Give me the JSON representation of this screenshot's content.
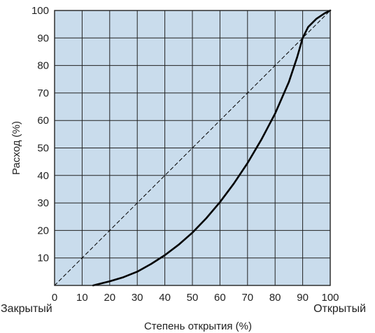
{
  "chart_data": {
    "type": "line",
    "title": "",
    "xlabel": "Степень открытия (%)",
    "ylabel": "Расход (%)",
    "xlim": [
      0,
      100
    ],
    "ylim": [
      0,
      100
    ],
    "x_ticks": [
      "0",
      "10",
      "20",
      "30",
      "40",
      "50",
      "60",
      "70",
      "80",
      "90",
      "100"
    ],
    "y_ticks": [
      "10",
      "20",
      "30",
      "40",
      "50",
      "60",
      "70",
      "80",
      "90",
      "100"
    ],
    "x_end_labels": {
      "left": "Закрытый",
      "right": "Открытый"
    },
    "grid": true,
    "legend": "none",
    "plot_background": "#c9dcec",
    "grid_color": "#222222",
    "series": [
      {
        "style": "solid",
        "color": "#000000",
        "x": [
          14,
          20,
          25,
          30,
          35,
          40,
          45,
          50,
          55,
          60,
          65,
          70,
          75,
          80,
          85,
          88,
          90,
          92,
          95,
          98,
          100
        ],
        "y": [
          0,
          1.5,
          3,
          5,
          7.8,
          11,
          14.8,
          19.2,
          24.4,
          30.3,
          37,
          44.5,
          53,
          62.5,
          74,
          83,
          90,
          94,
          97,
          99,
          100
        ]
      },
      {
        "style": "dashed",
        "color": "#000000",
        "x": [
          0,
          100
        ],
        "y": [
          0,
          100
        ]
      }
    ]
  }
}
